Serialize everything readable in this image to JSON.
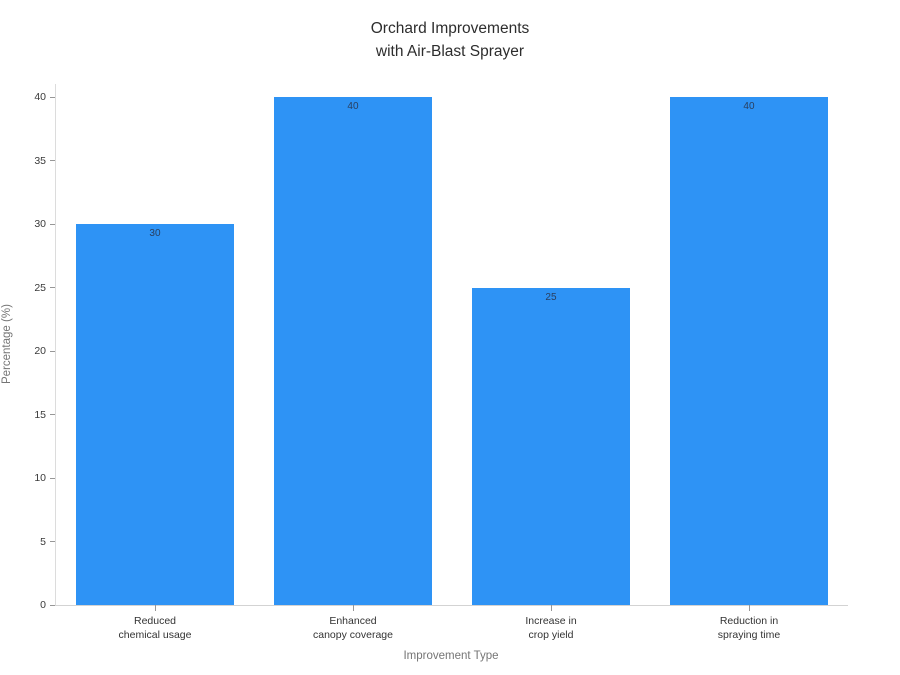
{
  "chart_data": {
    "type": "bar",
    "title": "Orchard Improvements\nwith Air-Blast Sprayer",
    "xlabel": "Improvement Type",
    "ylabel": "Percentage (%)",
    "categories": [
      "Reduced\nchemical usage",
      "Enhanced\ncanopy coverage",
      "Increase in\ncrop yield",
      "Reduction in\nspraying time"
    ],
    "values": [
      30,
      40,
      25,
      40
    ],
    "bar_value_labels": [
      "30",
      "40",
      "25",
      "40"
    ],
    "yticks": [
      0,
      5,
      10,
      15,
      20,
      25,
      30,
      35,
      40
    ],
    "ylim": [
      0,
      41.05
    ],
    "grid": false,
    "legend": "none",
    "colors": {
      "bar": "#2e93f5",
      "bar_value_label": "#2a3f5f",
      "tick_label": "#3a3a3a",
      "axis_title": "#757575",
      "axis_line": "#d3d3d3"
    }
  }
}
